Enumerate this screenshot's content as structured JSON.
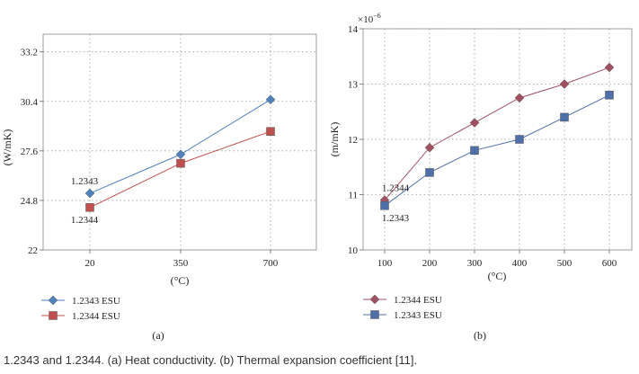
{
  "caption": "1.2343 and 1.2344. (a) Heat conductivity. (b) Thermal expansion coefficient [11].",
  "chart_data": [
    {
      "type": "line",
      "panel_label": "(a)",
      "title": "",
      "xlabel": "(°C)",
      "ylabel": "(W/mK)",
      "categories": [
        "20",
        "350",
        "700"
      ],
      "yticks": [
        "22",
        "24.8",
        "27.6",
        "30.4",
        "33.2"
      ],
      "ylim": [
        22,
        34.2
      ],
      "grid": true,
      "legend_position": "bottom-left",
      "series": [
        {
          "name": "1.2343 ESU",
          "marker": "diamond",
          "color": "#4f81bd",
          "values": [
            25.2,
            27.4,
            30.5
          ]
        },
        {
          "name": "1.2344 ESU",
          "marker": "square",
          "color": "#c0504d",
          "values": [
            24.4,
            26.9,
            28.7
          ]
        }
      ],
      "annotations": [
        {
          "text": "1.2343",
          "x": "20",
          "y": 25.2,
          "pos": "above"
        },
        {
          "text": "1.2344",
          "x": "20",
          "y": 24.4,
          "pos": "below"
        }
      ]
    },
    {
      "type": "line",
      "panel_label": "(b)",
      "title": "",
      "xlabel": "(°C)",
      "ylabel": "(m/mK)",
      "multiplier": "×10",
      "multiplier_exp": "−6",
      "categories": [
        "100",
        "200",
        "300",
        "400",
        "500",
        "600"
      ],
      "yticks": [
        "10",
        "11",
        "12",
        "13",
        "14"
      ],
      "ylim": [
        10,
        14
      ],
      "grid": true,
      "legend_position": "bottom-left",
      "series": [
        {
          "name": "1.2344 ESU",
          "marker": "diamond",
          "color": "#a05060",
          "values": [
            10.9,
            11.85,
            12.3,
            12.75,
            13.0,
            13.3
          ]
        },
        {
          "name": "1.2343 ESU",
          "marker": "square",
          "color": "#4f6fa8",
          "values": [
            10.8,
            11.4,
            11.8,
            12.0,
            12.4,
            12.8
          ]
        }
      ],
      "annotations": [
        {
          "text": "1.2344",
          "x": "100",
          "y": 10.9,
          "pos": "above"
        },
        {
          "text": "1.2343",
          "x": "100",
          "y": 10.8,
          "pos": "below"
        }
      ]
    }
  ]
}
